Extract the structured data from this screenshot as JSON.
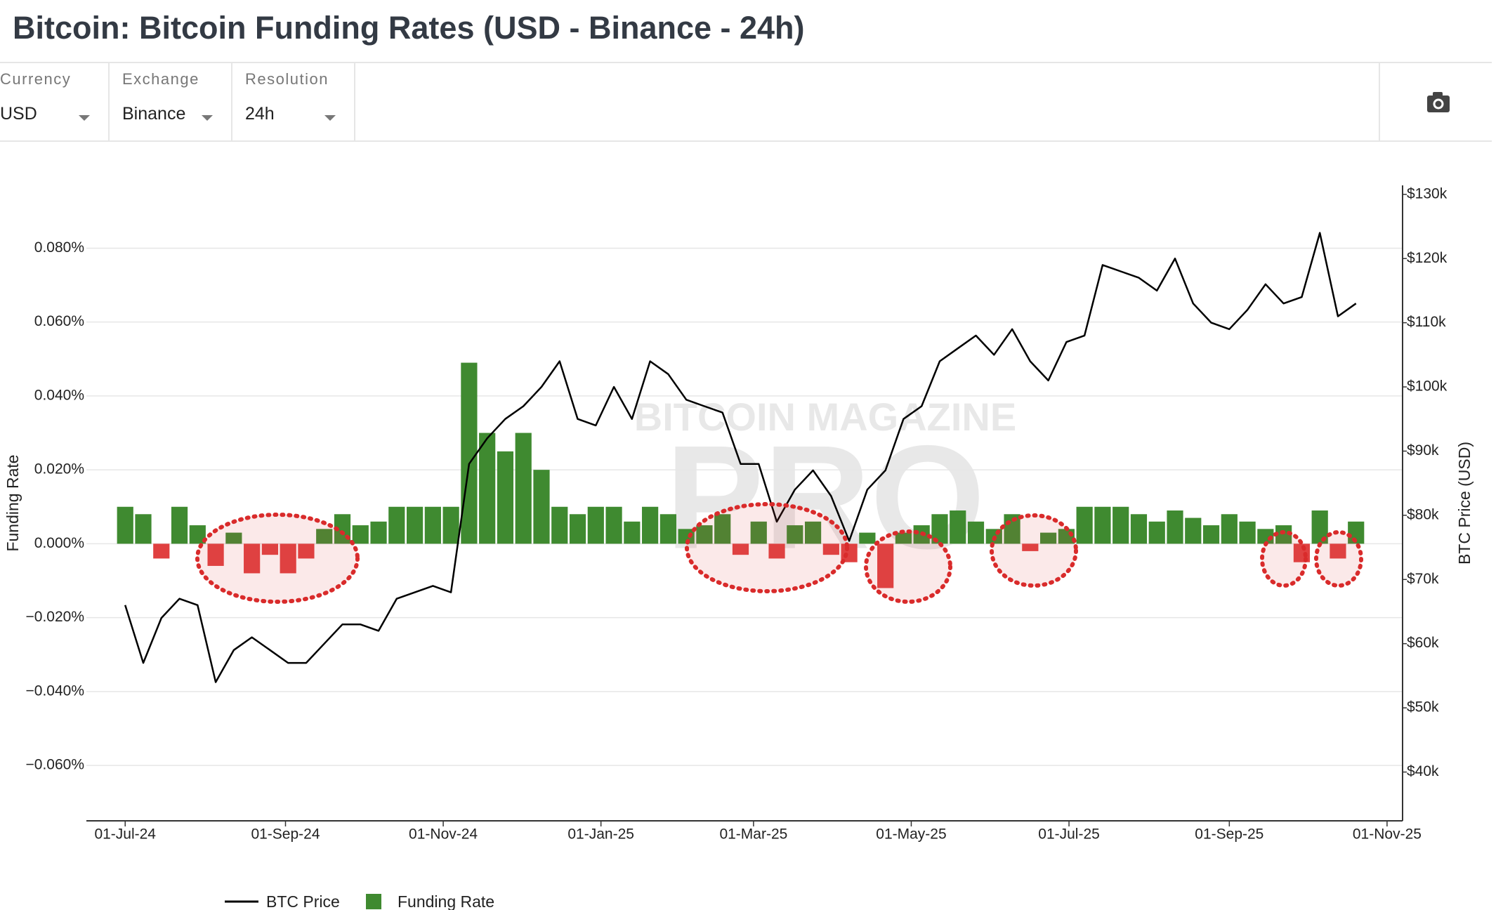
{
  "header": {
    "title": "Bitcoin: Bitcoin Funding Rates (USD - Binance - 24h)"
  },
  "controls": [
    {
      "label": "Currency",
      "value": "USD"
    },
    {
      "label": "Exchange",
      "value": "Binance"
    },
    {
      "label": "Resolution",
      "value": "24h"
    }
  ],
  "chart_data": {
    "type": "bar",
    "watermark": {
      "top": "BITCOIN MAGAZINE",
      "main": "PRO"
    },
    "y_label": "Funding Rate",
    "y2_label": "BTC Price (USD)",
    "x": [
      "2024-07-01",
      "2024-07-08",
      "2024-07-15",
      "2024-07-22",
      "2024-07-29",
      "2024-08-05",
      "2024-08-12",
      "2024-08-19",
      "2024-08-26",
      "2024-09-02",
      "2024-09-09",
      "2024-09-16",
      "2024-09-23",
      "2024-09-30",
      "2024-10-07",
      "2024-10-14",
      "2024-10-21",
      "2024-10-28",
      "2024-11-04",
      "2024-11-11",
      "2024-11-18",
      "2024-11-25",
      "2024-12-02",
      "2024-12-09",
      "2024-12-16",
      "2024-12-23",
      "2024-12-30",
      "2025-01-06",
      "2025-01-13",
      "2025-01-20",
      "2025-01-27",
      "2025-02-03",
      "2025-02-10",
      "2025-02-17",
      "2025-02-24",
      "2025-03-03",
      "2025-03-10",
      "2025-03-17",
      "2025-03-24",
      "2025-03-31",
      "2025-04-07",
      "2025-04-14",
      "2025-04-21",
      "2025-04-28",
      "2025-05-05",
      "2025-05-12",
      "2025-05-19",
      "2025-05-26",
      "2025-06-02",
      "2025-06-09",
      "2025-06-16",
      "2025-06-23",
      "2025-06-30",
      "2025-07-07",
      "2025-07-14",
      "2025-07-21",
      "2025-07-28",
      "2025-08-04",
      "2025-08-11",
      "2025-08-18",
      "2025-08-25",
      "2025-09-01",
      "2025-09-08",
      "2025-09-15",
      "2025-09-22",
      "2025-09-29",
      "2025-10-06",
      "2025-10-13",
      "2025-10-20"
    ],
    "xlim": [
      "2024-06-16",
      "2025-11-07"
    ],
    "xticks": [
      {
        "value": "2024-07-01",
        "label": "01-Jul-24"
      },
      {
        "value": "2024-09-01",
        "label": "01-Sep-24"
      },
      {
        "value": "2024-11-01",
        "label": "01-Nov-24"
      },
      {
        "value": "2025-01-01",
        "label": "01-Jan-25"
      },
      {
        "value": "2025-03-01",
        "label": "01-Mar-25"
      },
      {
        "value": "2025-05-01",
        "label": "01-May-25"
      },
      {
        "value": "2025-07-01",
        "label": "01-Jul-25"
      },
      {
        "value": "2025-09-01",
        "label": "01-Sep-25"
      },
      {
        "value": "2025-11-01",
        "label": "01-Nov-25"
      }
    ],
    "ylim": [
      -0.075,
      0.097
    ],
    "yticks": [
      {
        "value": 0.08,
        "label": "0.080%"
      },
      {
        "value": 0.06,
        "label": "0.060%"
      },
      {
        "value": 0.04,
        "label": "0.040%"
      },
      {
        "value": 0.02,
        "label": "0.020%"
      },
      {
        "value": 0,
        "label": "0.000%"
      },
      {
        "value": -0.02,
        "label": "−0.020%"
      },
      {
        "value": -0.04,
        "label": "−0.040%"
      },
      {
        "value": -0.06,
        "label": "−0.060%"
      }
    ],
    "y2lim": [
      32400,
      131400
    ],
    "y2ticks": [
      {
        "value": 130000,
        "label": "$130k"
      },
      {
        "value": 120000,
        "label": "$120k"
      },
      {
        "value": 110000,
        "label": "$110k"
      },
      {
        "value": 100000,
        "label": "$100k"
      },
      {
        "value": 90000,
        "label": "$90k"
      },
      {
        "value": 80000,
        "label": "$80k"
      },
      {
        "value": 70000,
        "label": "$70k"
      },
      {
        "value": 60000,
        "label": "$60k"
      },
      {
        "value": 50000,
        "label": "$50k"
      },
      {
        "value": 40000,
        "label": "$40k"
      }
    ],
    "grid": true,
    "series": [
      {
        "name": "BTC Price",
        "type": "line",
        "axis": "y2",
        "color": "#000000",
        "values": [
          66000,
          57000,
          64000,
          67000,
          66000,
          54000,
          59000,
          61000,
          59000,
          57000,
          57000,
          60000,
          63000,
          63000,
          62000,
          67000,
          68000,
          69000,
          68000,
          88000,
          92000,
          95000,
          97000,
          100000,
          104000,
          95000,
          94000,
          100000,
          95000,
          104000,
          102000,
          98000,
          97000,
          96000,
          88000,
          88000,
          79000,
          84000,
          87000,
          83000,
          76000,
          84000,
          87000,
          95000,
          97000,
          104000,
          106000,
          108000,
          105000,
          109000,
          104000,
          101000,
          107000,
          108000,
          119000,
          118000,
          117000,
          115000,
          120000,
          113000,
          110000,
          109000,
          112000,
          116000,
          113000,
          114000,
          124000,
          111000,
          113000
        ]
      },
      {
        "name": "Funding Rate",
        "type": "bar",
        "color": "#3f8a30",
        "negative_color": "#e04040",
        "values": [
          0.01,
          0.008,
          -0.004,
          0.01,
          0.005,
          -0.006,
          0.003,
          -0.008,
          -0.003,
          -0.008,
          -0.004,
          0.004,
          0.008,
          0.005,
          0.006,
          0.01,
          0.01,
          0.01,
          0.01,
          0.049,
          0.03,
          0.025,
          0.03,
          0.02,
          0.01,
          0.008,
          0.01,
          0.01,
          0.006,
          0.01,
          0.008,
          0.004,
          0.005,
          0.008,
          -0.003,
          0.006,
          -0.004,
          0.005,
          0.006,
          -0.003,
          -0.005,
          0.003,
          -0.012,
          0.003,
          0.005,
          0.008,
          0.009,
          0.006,
          0.004,
          0.008,
          -0.002,
          0.003,
          0.004,
          0.01,
          0.01,
          0.01,
          0.008,
          0.006,
          0.009,
          0.007,
          0.005,
          0.008,
          0.006,
          0.004,
          0.005,
          -0.005,
          0.009,
          -0.004,
          0.006
        ]
      }
    ]
  }
}
